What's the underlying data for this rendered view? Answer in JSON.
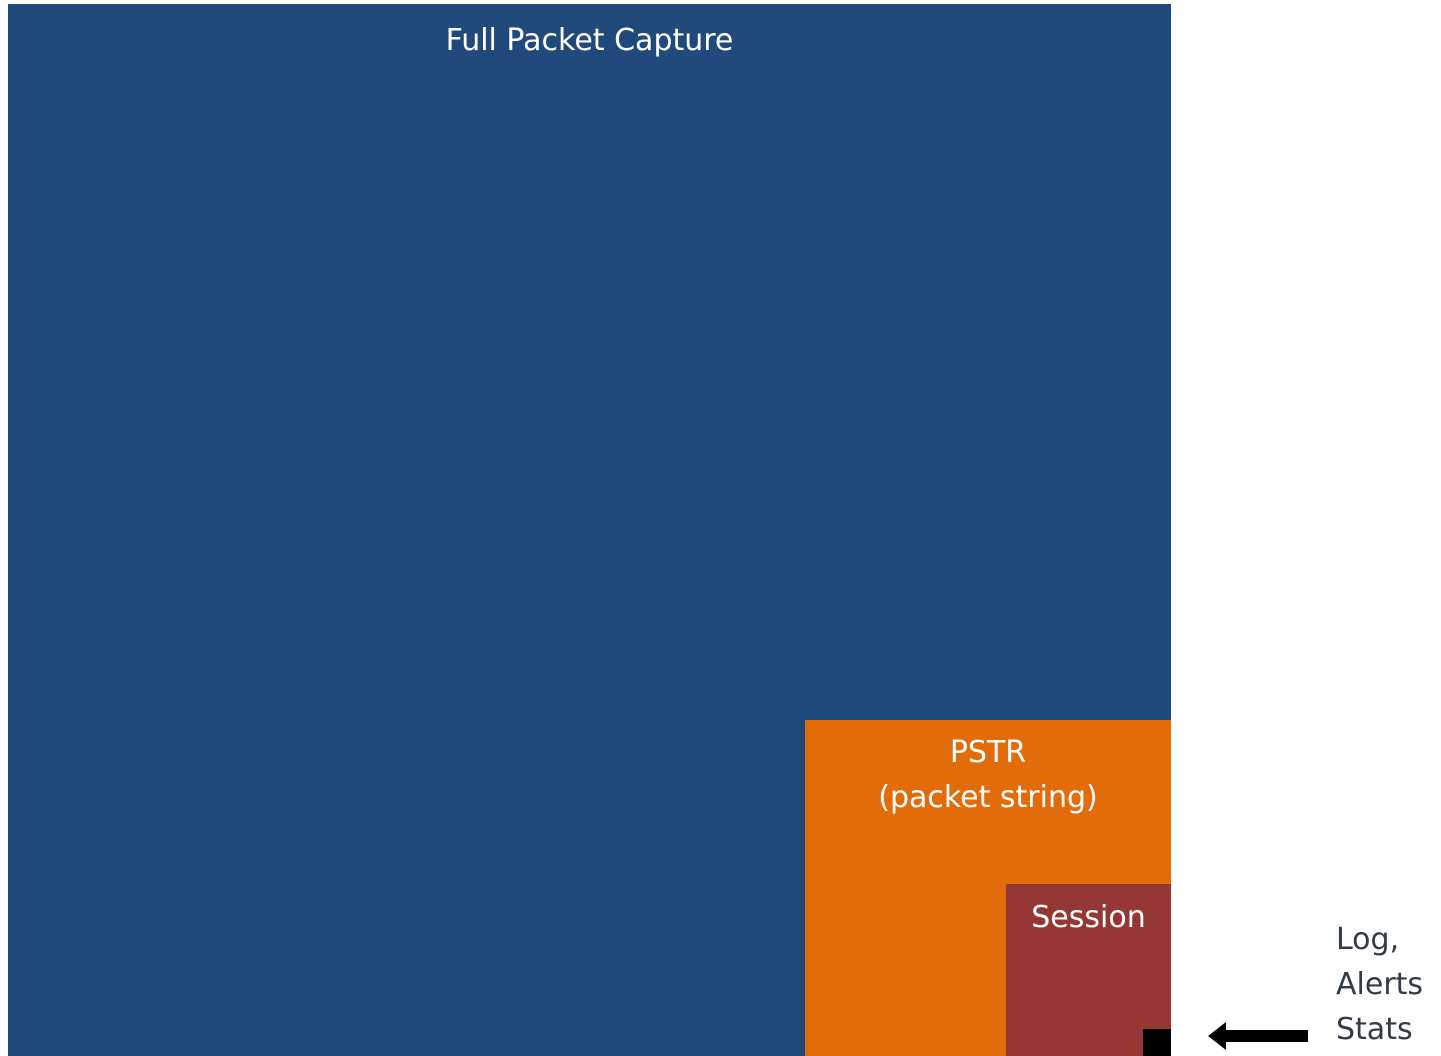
{
  "diagram": {
    "full_packet_capture": {
      "label": "Full Packet Capture",
      "color": "#214a7c"
    },
    "pstr": {
      "label_line1": "PSTR",
      "label_line2": "(packet string)",
      "color": "#e36c0a"
    },
    "session": {
      "label": "Session",
      "color": "#953735"
    },
    "log_alerts_stats": {
      "label_line1": "Log,",
      "label_line2": "Alerts",
      "label_line3": "Stats",
      "color": "#000000",
      "arrow_icon": "arrow-left-icon"
    }
  }
}
